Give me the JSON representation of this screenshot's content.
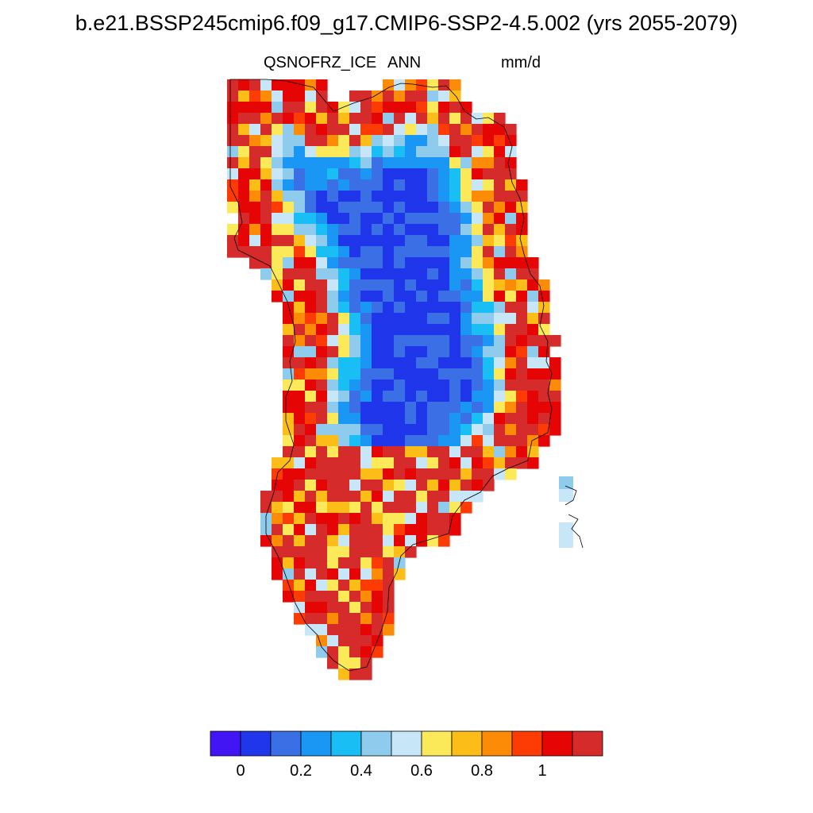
{
  "title": "b.e21.BSSP245cmip6.f09_g17.CMIP6-SSP2-4.5.002 (yrs 2055-2079)",
  "left_label": "QSNOFRZ_ICE",
  "center_label": "ANN",
  "right_label": "mm/d",
  "colorbar": {
    "colors": [
      "#4215f5",
      "#2036eb",
      "#3a6fe6",
      "#1a96f5",
      "#18bef4",
      "#8fcbed",
      "#c7e6f7",
      "#fce95a",
      "#fcbd19",
      "#fc8c07",
      "#fc3c04",
      "#e60505",
      "#d62b2b"
    ],
    "tick_labels": [
      "0",
      "0.2",
      "0.4",
      "0.6",
      "0.8",
      "1"
    ],
    "tick_values": [
      0,
      0.2,
      0.4,
      0.6,
      0.8,
      1.0
    ]
  },
  "map_legend": {
    "low_value_region": "interior ice sheet",
    "high_value_region": "margins"
  }
}
